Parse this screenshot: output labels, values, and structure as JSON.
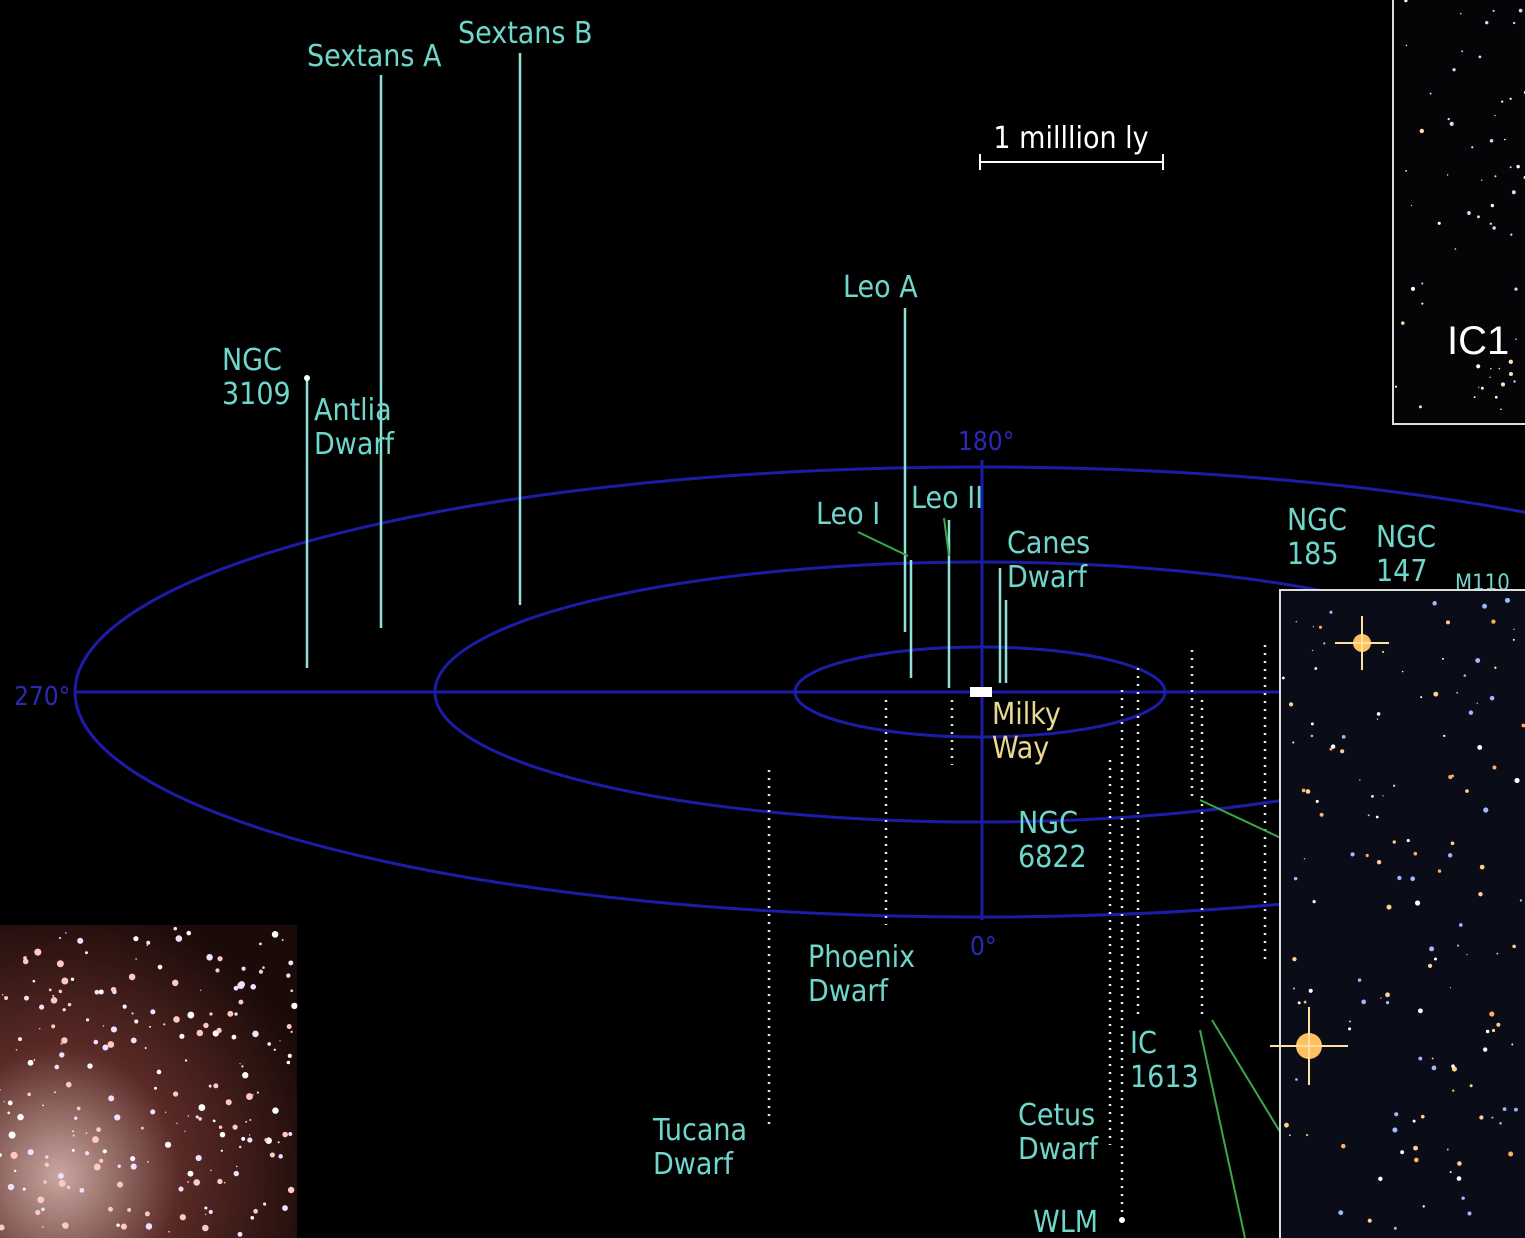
{
  "scale_label": "1 milllion ly",
  "angles": {
    "top": "180°",
    "left": "270°",
    "bottom": "0°"
  },
  "galaxies": {
    "sextans_a": [
      "Sextans A"
    ],
    "sextans_b": [
      "Sextans B"
    ],
    "ngc_3109": [
      "NGC",
      "3109"
    ],
    "antlia": [
      "Antlia",
      "Dwarf"
    ],
    "leo_a": [
      "Leo A"
    ],
    "leo_i": [
      "Leo I"
    ],
    "leo_ii": [
      "Leo II"
    ],
    "canes": [
      "Canes",
      "Dwarf"
    ],
    "ngc_185": [
      "NGC",
      "185"
    ],
    "ngc_147": [
      "NGC",
      "147"
    ],
    "m110": [
      "M110"
    ],
    "milky_way": [
      "Milky",
      "Way"
    ],
    "ngc_6822": [
      "NGC",
      "6822"
    ],
    "phoenix": [
      "Phoenix",
      "Dwarf"
    ],
    "ic_1613": [
      "IC",
      "1613"
    ],
    "tucana": [
      "Tucana",
      "Dwarf"
    ],
    "cetus": [
      "Cetus",
      "Dwarf"
    ],
    "wlm": [
      "WLM"
    ]
  },
  "inset_label": "IC1"
}
